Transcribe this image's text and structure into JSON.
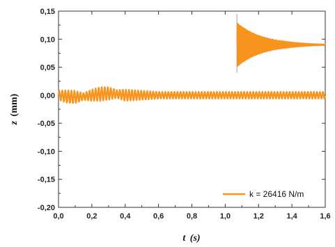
{
  "chart_data": {
    "type": "line",
    "title": "",
    "xlabel": "t (s)",
    "xlabel_var": "t",
    "xlabel_unit": "(s)",
    "ylabel": "z (mm)",
    "ylabel_var": "z",
    "ylabel_unit": "(mm)",
    "xlim": [
      0.0,
      1.6
    ],
    "ylim": [
      -0.2,
      0.15
    ],
    "x_ticks": [
      "0,0",
      "0,2",
      "0,4",
      "0,6",
      "0,8",
      "1,0",
      "1,2",
      "1,4",
      "1,6"
    ],
    "x_tick_values": [
      0.0,
      0.2,
      0.4,
      0.6,
      0.8,
      1.0,
      1.2,
      1.4,
      1.6
    ],
    "y_ticks": [
      "0,15",
      "0,10",
      "0,05",
      "0,00",
      "-0,05",
      "-0,10",
      "-0,15",
      "-0,20"
    ],
    "y_tick_values": [
      0.15,
      0.1,
      0.05,
      0.0,
      -0.05,
      -0.1,
      -0.15,
      -0.2
    ],
    "grid": false,
    "legend_position": "bottom-right",
    "series": [
      {
        "name": "k = 26416 N/m",
        "color": "#F7941D",
        "description_points": {
          "x": [
            0.0,
            0.05,
            0.1,
            0.15,
            0.2,
            0.25,
            0.3,
            0.35,
            0.4,
            0.6,
            0.8,
            1.0,
            1.2,
            1.4,
            1.6
          ],
          "y_amplitude": [
            0.008,
            0.011,
            0.011,
            0.006,
            0.01,
            0.012,
            0.011,
            0.007,
            0.01,
            0.006,
            0.006,
            0.006,
            0.006,
            0.006,
            0.006
          ]
        }
      }
    ],
    "inset": {
      "color": "#F7941D",
      "x_start": 1.07,
      "x_end": 1.6,
      "center": 0.09,
      "initial_amplitude": 0.04,
      "decay": 6.5
    }
  }
}
